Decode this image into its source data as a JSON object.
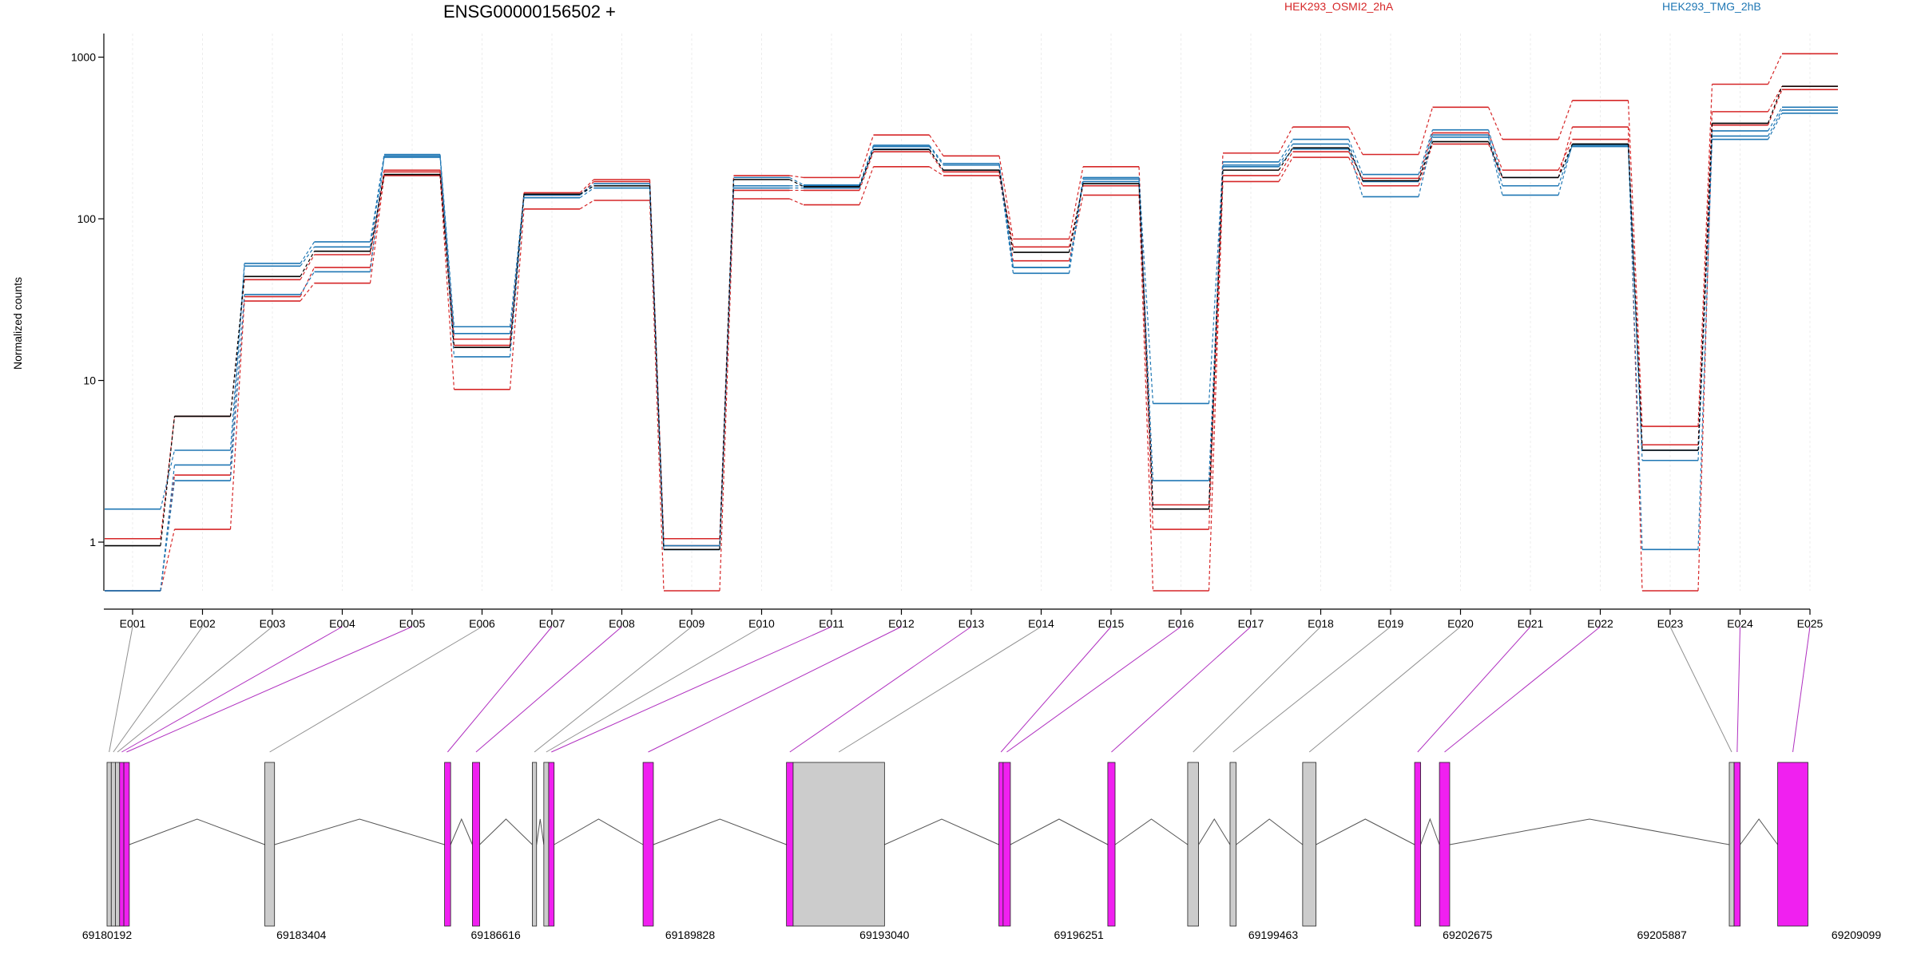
{
  "header": {
    "gene": "ENSG00000156502 +",
    "legend": [
      {
        "label": "HEK293_OSMI2_2hA",
        "color": "#d62728"
      },
      {
        "label": "HEK293_TMG_2hB",
        "color": "#1f77b4"
      }
    ]
  },
  "colors": {
    "red": "#d62728",
    "blue": "#1f77b4",
    "black": "#000000",
    "exon_magenta": "#f020f0",
    "exon_gray": "#cccccc",
    "link_magenta": "#b030c0",
    "link_gray": "#909090"
  },
  "chart_data": {
    "type": "line",
    "scale": "log",
    "ylabel": "Normalized counts",
    "ylim": [
      0.5,
      1400
    ],
    "yticks": [
      1,
      10,
      100,
      1000
    ],
    "ytick_labels": [
      "1",
      "10",
      "100",
      "1000"
    ],
    "categories": [
      "E001",
      "E002",
      "E003",
      "E004",
      "E005",
      "E006",
      "E007",
      "E008",
      "E009",
      "E010",
      "E011",
      "E012",
      "E013",
      "E014",
      "E015",
      "E016",
      "E017",
      "E018",
      "E019",
      "E020",
      "E021",
      "E022",
      "E023",
      "E024",
      "E025"
    ],
    "series": [
      {
        "color": "red",
        "values": [
          1.05,
          6.0,
          42,
          60,
          195,
          18.0,
          145,
          175,
          1.05,
          185,
          180,
          330,
          245,
          75,
          210,
          1.7,
          255,
          370,
          250,
          490,
          310,
          540,
          5.2,
          680,
          1050
        ]
      },
      {
        "color": "red",
        "values": [
          0.5,
          1.2,
          31,
          40,
          185,
          8.8,
          115,
          130,
          0.5,
          133,
          122,
          210,
          185,
          55,
          140,
          0.5,
          170,
          240,
          160,
          290,
          180,
          370,
          0.5,
          380,
          630
        ]
      },
      {
        "color": "red",
        "values": [
          0.5,
          2.6,
          33,
          50,
          200,
          16.5,
          140,
          170,
          0.95,
          150,
          150,
          260,
          195,
          67,
          160,
          1.2,
          185,
          260,
          178,
          340,
          200,
          310,
          4.0,
          460,
          660
        ]
      },
      {
        "color": "blue",
        "values": [
          1.6,
          3.7,
          53,
          72,
          250,
          21.5,
          142,
          165,
          0.95,
          180,
          162,
          285,
          220,
          50,
          180,
          7.2,
          225,
          310,
          188,
          355,
          180,
          280,
          3.2,
          350,
          490
        ]
      },
      {
        "color": "blue",
        "values": [
          0.5,
          2.4,
          34,
          47,
          245,
          14.0,
          135,
          155,
          0.9,
          155,
          155,
          270,
          200,
          46,
          170,
          2.4,
          210,
          270,
          137,
          320,
          140,
          290,
          0.9,
          310,
          450
        ]
      },
      {
        "color": "blue",
        "values": [
          0.5,
          3.0,
          51,
          67,
          240,
          19.5,
          140,
          160,
          0.9,
          160,
          160,
          280,
          215,
          50,
          176,
          1.6,
          215,
          290,
          170,
          330,
          160,
          285,
          3.7,
          325,
          470
        ]
      },
      {
        "color": "black",
        "values": [
          0.95,
          6.0,
          44,
          63,
          188,
          16.0,
          142,
          160,
          0.9,
          175,
          158,
          268,
          200,
          62,
          165,
          1.6,
          200,
          275,
          172,
          300,
          180,
          290,
          3.7,
          390,
          660
        ]
      }
    ]
  },
  "gene_model": {
    "coordinates": [
      "69180192",
      "69183404",
      "69186616",
      "69189828",
      "69193040",
      "69196251",
      "69199463",
      "69202675",
      "69205887",
      "69209099"
    ],
    "exons": [
      {
        "id": "E001",
        "start": 69180192,
        "end": 69180262,
        "type": "gray"
      },
      {
        "id": "E002",
        "start": 69180262,
        "end": 69180330,
        "type": "gray"
      },
      {
        "id": "E003",
        "start": 69180330,
        "end": 69180400,
        "type": "gray"
      },
      {
        "id": "E004",
        "start": 69180400,
        "end": 69180470,
        "type": "magenta"
      },
      {
        "id": "E005",
        "start": 69180470,
        "end": 69180560,
        "type": "magenta"
      },
      {
        "id": "E006",
        "start": 69182800,
        "end": 69182960,
        "type": "gray"
      },
      {
        "id": "E007",
        "start": 69185770,
        "end": 69185870,
        "type": "magenta"
      },
      {
        "id": "E008",
        "start": 69186230,
        "end": 69186350,
        "type": "magenta"
      },
      {
        "id": "E009",
        "start": 69187220,
        "end": 69187290,
        "type": "gray"
      },
      {
        "id": "E010",
        "start": 69187410,
        "end": 69187490,
        "type": "gray"
      },
      {
        "id": "E011",
        "start": 69187490,
        "end": 69187580,
        "type": "magenta"
      },
      {
        "id": "E012",
        "start": 69189050,
        "end": 69189220,
        "type": "magenta"
      },
      {
        "id": "E013",
        "start": 69191420,
        "end": 69191530,
        "type": "magenta"
      },
      {
        "id": "E014",
        "start": 69191530,
        "end": 69193040,
        "type": "gray"
      },
      {
        "id": "E015",
        "start": 69194930,
        "end": 69195000,
        "type": "magenta"
      },
      {
        "id": "E016",
        "start": 69195000,
        "end": 69195120,
        "type": "magenta"
      },
      {
        "id": "E017",
        "start": 69196730,
        "end": 69196850,
        "type": "magenta"
      },
      {
        "id": "E018",
        "start": 69198050,
        "end": 69198230,
        "type": "gray"
      },
      {
        "id": "E019",
        "start": 69198750,
        "end": 69198850,
        "type": "gray"
      },
      {
        "id": "E020",
        "start": 69199950,
        "end": 69200170,
        "type": "gray"
      },
      {
        "id": "E021",
        "start": 69201800,
        "end": 69201900,
        "type": "magenta"
      },
      {
        "id": "E022",
        "start": 69202210,
        "end": 69202380,
        "type": "magenta"
      },
      {
        "id": "E023",
        "start": 69207000,
        "end": 69207080,
        "type": "gray"
      },
      {
        "id": "E024",
        "start": 69207080,
        "end": 69207180,
        "type": "magenta"
      },
      {
        "id": "E025",
        "start": 69207800,
        "end": 69208300,
        "type": "magenta"
      }
    ]
  }
}
